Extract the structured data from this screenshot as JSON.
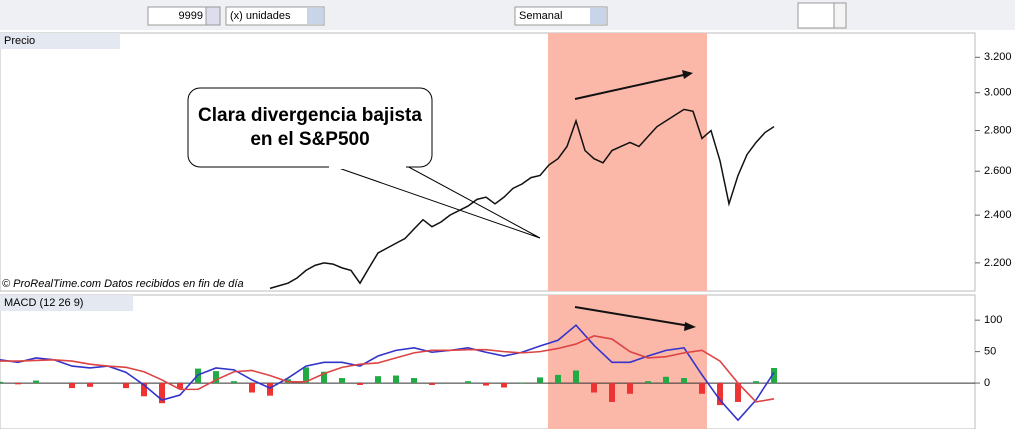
{
  "toolbar": {
    "quantity": "9999",
    "units": "(x) unidades",
    "period": "Semanal"
  },
  "chart_data": [
    {
      "type": "line",
      "title": "Precio",
      "color": "#111111",
      "log_scale": true,
      "annotations": [
        "Clara divergencia bajista",
        "en el S&P500"
      ],
      "credit": "© ProRealTime.com Datos recibidos en fin de día",
      "values": [
        2100,
        2110,
        2120,
        2140,
        2170,
        2190,
        2200,
        2195,
        2180,
        2170,
        2120,
        2180,
        2240,
        2260,
        2280,
        2300,
        2340,
        2380,
        2350,
        2370,
        2400,
        2420,
        2440,
        2470,
        2480,
        2450,
        2480,
        2520,
        2540,
        2570,
        2580,
        2630,
        2660,
        2720,
        2850,
        2700,
        2660,
        2640,
        2700,
        2720,
        2740,
        2720,
        2770,
        2820,
        2850,
        2880,
        2910,
        2900,
        2760,
        2800,
        2650,
        2450,
        2580,
        2680,
        2740,
        2790,
        2820
      ],
      "ylim": [
        2090,
        3345
      ],
      "yticks": [
        {
          "value": 2200,
          "label": "2.200"
        },
        {
          "value": 2400,
          "label": "2.400"
        },
        {
          "value": 2600,
          "label": "2.600"
        },
        {
          "value": 2800,
          "label": "2.800"
        },
        {
          "value": 3000,
          "label": "3.000"
        },
        {
          "value": 3200,
          "label": "3.200"
        }
      ]
    },
    {
      "type": "macd",
      "title": "MACD (12 26 9)",
      "series": [
        {
          "color": "#3333cc",
          "values": [
            37,
            33,
            40,
            37,
            27,
            24,
            27,
            17,
            -3,
            -27,
            -19,
            13,
            24,
            21,
            5,
            -8,
            8,
            27,
            33,
            33,
            27,
            43,
            52,
            56,
            49,
            52,
            56,
            49,
            43,
            49,
            59,
            68,
            92,
            60,
            33,
            33,
            43,
            52,
            56,
            13,
            -27,
            -59,
            -27,
            17
          ]
        },
        {
          "color": "#dd4444",
          "values": [
            35,
            35,
            36,
            37,
            35,
            30,
            27,
            25,
            18,
            5,
            -10,
            -10,
            5,
            18,
            20,
            12,
            2,
            2,
            15,
            25,
            30,
            32,
            40,
            48,
            52,
            52,
            53,
            53,
            50,
            48,
            50,
            55,
            62,
            75,
            70,
            50,
            40,
            42,
            48,
            52,
            35,
            0,
            -30,
            -25
          ]
        }
      ],
      "histogram": {
        "positive_color": "#22aa44",
        "negative_color": "#ee3333",
        "values": [
          2,
          -2,
          4,
          0,
          -8,
          -6,
          0,
          -8,
          -21,
          -32,
          -9,
          23,
          19,
          3,
          -15,
          -20,
          6,
          25,
          18,
          8,
          -3,
          11,
          12,
          8,
          -3,
          0,
          3,
          -4,
          -7,
          1,
          9,
          13,
          20,
          -15,
          -30,
          -17,
          3,
          10,
          8,
          -17,
          -35,
          -30,
          3,
          24
        ]
      },
      "ylim": [
        -73,
        140
      ],
      "yticks": [
        0,
        50,
        100
      ]
    }
  ]
}
